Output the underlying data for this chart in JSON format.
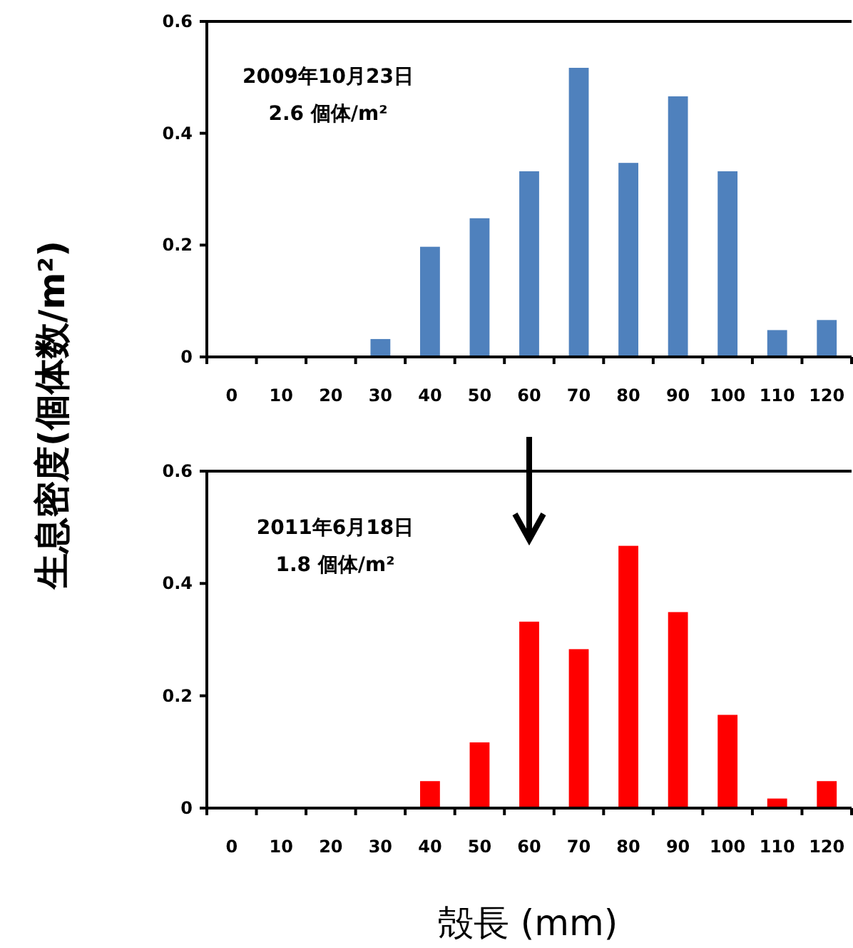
{
  "chart_data": [
    {
      "type": "bar",
      "categories": [
        "0",
        "10",
        "20",
        "30",
        "40",
        "50",
        "60",
        "70",
        "80",
        "90",
        "100",
        "110",
        "120"
      ],
      "values": [
        0,
        0,
        0,
        0.032,
        0.197,
        0.248,
        0.332,
        0.517,
        0.347,
        0.466,
        0.332,
        0.048,
        0.066
      ],
      "color": "#4f81bd",
      "ylim": [
        0,
        0.6
      ],
      "yticks": [
        0,
        0.2,
        0.4,
        0.6
      ],
      "ylabel": "生息密度(個体数/m²)",
      "annotations": [
        "2009年10月23日",
        "2.6 個体/m²"
      ]
    },
    {
      "type": "bar",
      "categories": [
        "0",
        "10",
        "20",
        "30",
        "40",
        "50",
        "60",
        "70",
        "80",
        "90",
        "100",
        "110",
        "120"
      ],
      "values": [
        0,
        0,
        0,
        0,
        0.048,
        0.117,
        0.332,
        0.283,
        0.467,
        0.349,
        0.166,
        0.017,
        0.048
      ],
      "color": "#ff0000",
      "ylim": [
        0,
        0.6
      ],
      "yticks": [
        0,
        0.2,
        0.4,
        0.6
      ],
      "xlabel": "殻長 (mm)",
      "annotations": [
        "2011年6月18日",
        "1.8 個体/m²"
      ]
    }
  ]
}
